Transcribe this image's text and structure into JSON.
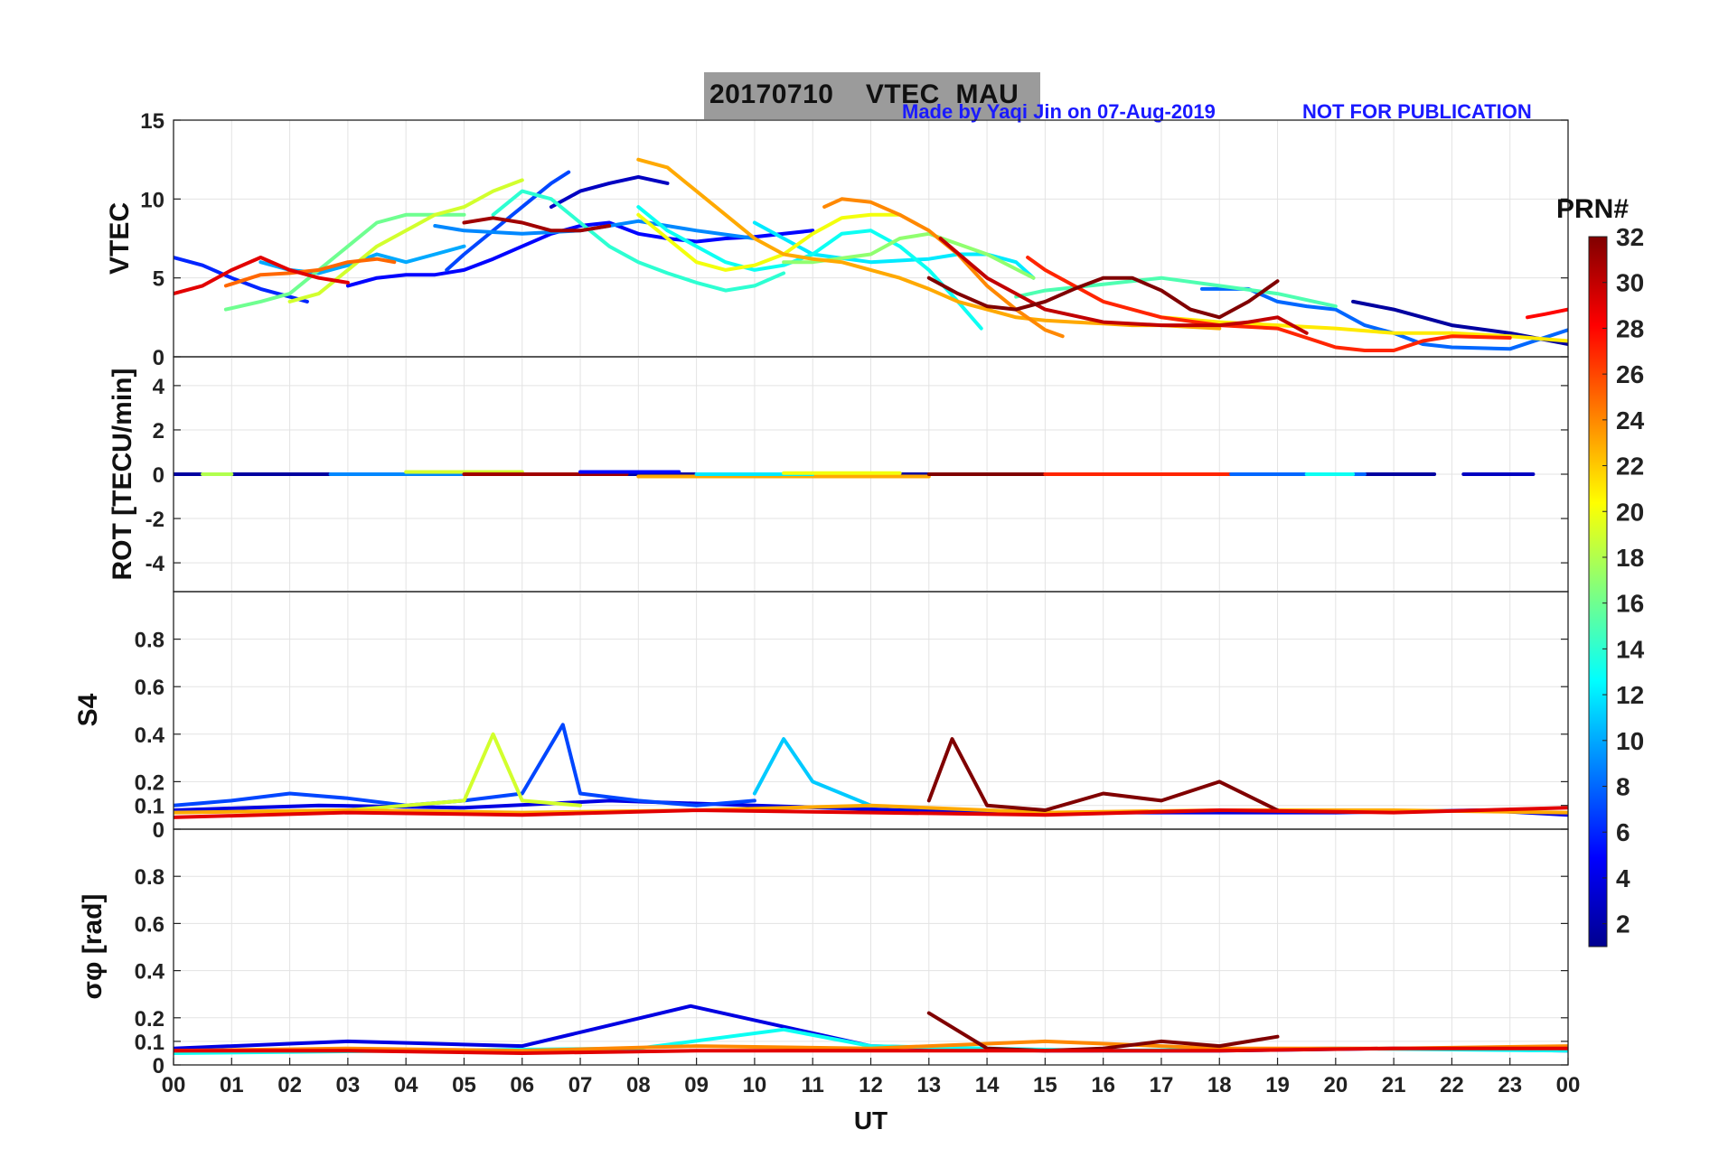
{
  "header": {
    "title_date": "20170710",
    "title_station": "VTEC  MAU",
    "credit": "Made by Yaqi Jin on 07-Aug-2019",
    "notice": "NOT FOR PUBLICATION"
  },
  "chart_data": [
    {
      "type": "line",
      "panel": "vtec",
      "ylabel": "VTEC",
      "ylim": [
        0,
        15
      ],
      "yticks": [
        "0",
        "5",
        "10",
        "15"
      ],
      "series": [
        {
          "prn": 2,
          "x": [
            20.3,
            21.0,
            22.0,
            23.0,
            24.0
          ],
          "y": [
            3.5,
            3.0,
            2.0,
            1.5,
            0.8
          ]
        },
        {
          "prn": 3,
          "x": [
            6.5,
            7.0,
            7.5,
            8.0,
            8.5
          ],
          "y": [
            9.5,
            10.5,
            11.0,
            11.4,
            11.0
          ]
        },
        {
          "prn": 5,
          "x": [
            3.0,
            3.5,
            4.0,
            4.5,
            5.0,
            5.5,
            6.0,
            6.5,
            7.0,
            7.5,
            8.0,
            8.5,
            9.0,
            9.5,
            10.0,
            10.5,
            11.0
          ],
          "y": [
            4.5,
            5.0,
            5.2,
            5.2,
            5.5,
            6.2,
            7.0,
            7.8,
            8.3,
            8.5,
            7.8,
            7.5,
            7.3,
            7.5,
            7.6,
            7.8,
            8.0
          ]
        },
        {
          "prn": 6,
          "x": [
            0.0,
            0.5,
            1.0,
            1.5,
            2.0,
            2.3
          ],
          "y": [
            6.3,
            5.8,
            5.0,
            4.3,
            3.8,
            3.5
          ]
        },
        {
          "prn": 7,
          "x": [
            4.7,
            5.0,
            5.5,
            6.0,
            6.5,
            6.8
          ],
          "y": [
            5.5,
            6.5,
            8.0,
            9.5,
            11.0,
            11.7
          ]
        },
        {
          "prn": 8,
          "x": [
            17.7,
            18.5,
            19.0,
            19.5,
            20.0,
            20.5,
            21.0,
            21.5,
            22.0,
            23.0,
            24.0
          ],
          "y": [
            4.3,
            4.3,
            3.5,
            3.2,
            3.0,
            2.0,
            1.5,
            0.8,
            0.6,
            0.5,
            1.7
          ]
        },
        {
          "prn": 9,
          "x": [
            4.5,
            5.0,
            6.0,
            7.0,
            8.0,
            9.0,
            10.0
          ],
          "y": [
            8.3,
            8.0,
            7.8,
            8.0,
            8.6,
            8.0,
            7.5
          ]
        },
        {
          "prn": 10,
          "x": [
            1.5,
            2.0,
            2.5,
            3.0,
            3.5,
            4.0,
            4.5,
            5.0
          ],
          "y": [
            6.0,
            5.5,
            5.3,
            5.8,
            6.5,
            6.0,
            6.5,
            7.0
          ]
        },
        {
          "prn": 12,
          "x": [
            10.0,
            10.5,
            11.0,
            12.0,
            13.0,
            13.5,
            14.0,
            14.5,
            14.8
          ],
          "y": [
            8.5,
            7.5,
            6.5,
            6.0,
            6.2,
            6.5,
            6.5,
            6.0,
            5.0
          ]
        },
        {
          "prn": 13,
          "x": [
            8.0,
            8.5,
            9.0,
            9.5,
            10.0,
            10.5,
            11.0,
            11.5,
            12.0,
            12.5,
            13.0,
            13.5,
            13.9
          ],
          "y": [
            9.5,
            8.0,
            7.0,
            6.0,
            5.5,
            5.8,
            6.5,
            7.8,
            8.0,
            7.0,
            5.5,
            3.5,
            1.8
          ]
        },
        {
          "prn": 14,
          "x": [
            5.5,
            6.0,
            6.5,
            7.0,
            7.5,
            8.0,
            8.5,
            9.0,
            9.5,
            10.0,
            10.5
          ],
          "y": [
            9.0,
            10.5,
            10.0,
            8.5,
            7.0,
            6.0,
            5.3,
            4.7,
            4.2,
            4.5,
            5.3
          ]
        },
        {
          "prn": 15,
          "x": [
            14.5,
            15.0,
            16.0,
            17.0,
            18.0,
            19.0,
            20.0
          ],
          "y": [
            3.8,
            4.2,
            4.6,
            5.0,
            4.5,
            4.0,
            3.2
          ]
        },
        {
          "prn": 16,
          "x": [
            0.9,
            1.5,
            2.0,
            2.5,
            3.0,
            3.5,
            4.0,
            4.5,
            5.0
          ],
          "y": [
            3.0,
            3.5,
            4.0,
            5.5,
            7.0,
            8.5,
            9.0,
            9.0,
            9.0
          ]
        },
        {
          "prn": 17,
          "x": [
            10.5,
            11.0,
            12.0,
            12.5,
            13.0,
            14.0,
            14.8
          ],
          "y": [
            6.0,
            6.0,
            6.5,
            7.5,
            7.8,
            6.5,
            5.0
          ]
        },
        {
          "prn": 19,
          "x": [
            2.0,
            2.5,
            3.0,
            3.5,
            4.0,
            4.5,
            5.0,
            5.5,
            6.0
          ],
          "y": [
            3.5,
            4.0,
            5.5,
            7.0,
            8.0,
            9.0,
            9.5,
            10.5,
            11.2
          ]
        },
        {
          "prn": 20,
          "x": [
            8.0,
            8.5,
            9.0,
            9.5,
            10.0,
            10.5,
            11.0,
            11.5,
            12.0,
            12.5
          ],
          "y": [
            9.0,
            7.5,
            6.0,
            5.5,
            5.8,
            6.5,
            7.8,
            8.8,
            9.0,
            9.0
          ]
        },
        {
          "prn": 21,
          "x": [
            17.0,
            18.0,
            19.0,
            20.0,
            21.0,
            22.0,
            23.0,
            24.0
          ],
          "y": [
            2.5,
            2.2,
            2.0,
            1.8,
            1.5,
            1.5,
            1.3,
            1.0
          ]
        },
        {
          "prn": 23,
          "x": [
            8.0,
            8.5,
            9.0,
            9.5,
            10.0,
            10.5,
            11.0,
            11.5,
            12.0,
            12.5,
            13.0,
            13.5,
            14.0,
            14.5,
            15.0,
            15.5,
            16.0,
            16.5,
            17.0,
            18.0
          ],
          "y": [
            12.5,
            12.0,
            10.5,
            9.0,
            7.5,
            6.5,
            6.2,
            6.0,
            5.5,
            5.0,
            4.3,
            3.5,
            3.0,
            2.5,
            2.3,
            2.2,
            2.1,
            2.0,
            2.0,
            1.8
          ]
        },
        {
          "prn": 24,
          "x": [
            11.2,
            11.5,
            12.0,
            12.5,
            13.0,
            13.5,
            14.0,
            14.5,
            15.0,
            15.3
          ],
          "y": [
            9.5,
            10.0,
            9.8,
            9.0,
            8.0,
            6.5,
            4.5,
            3.0,
            1.7,
            1.3
          ]
        },
        {
          "prn": 25,
          "x": [
            0.9,
            1.5,
            2.0,
            2.5,
            3.0,
            3.5,
            3.8
          ],
          "y": [
            4.5,
            5.2,
            5.3,
            5.5,
            6.0,
            6.2,
            6.0
          ]
        },
        {
          "prn": 27,
          "x": [
            14.7,
            15.0,
            16.0,
            17.0,
            18.0,
            19.0,
            19.5,
            20.0,
            20.5,
            21.0,
            21.5,
            22.0,
            23.0
          ],
          "y": [
            6.3,
            5.5,
            3.5,
            2.5,
            2.0,
            1.8,
            1.2,
            0.6,
            0.4,
            0.4,
            1.0,
            1.3,
            1.2
          ]
        },
        {
          "prn": 28,
          "x": [
            23.3,
            23.6,
            24.0
          ],
          "y": [
            2.5,
            2.7,
            3.0
          ]
        },
        {
          "prn": 29,
          "x": [
            0.0,
            0.5,
            1.0,
            1.5,
            2.0,
            2.5,
            3.0
          ],
          "y": [
            4.0,
            4.5,
            5.5,
            6.3,
            5.5,
            5.0,
            4.7
          ]
        },
        {
          "prn": 30,
          "x": [
            13.2,
            14.0,
            15.0,
            16.0,
            17.0,
            18.0,
            18.5,
            19.0,
            19.5
          ],
          "y": [
            7.5,
            5.0,
            3.0,
            2.2,
            2.0,
            2.0,
            2.2,
            2.5,
            1.5
          ]
        },
        {
          "prn": 31,
          "x": [
            5.0,
            5.5,
            6.0,
            6.5,
            7.0,
            7.5
          ],
          "y": [
            8.5,
            8.8,
            8.5,
            8.0,
            8.0,
            8.3
          ]
        },
        {
          "prn": 32,
          "x": [
            13.0,
            13.5,
            14.0,
            14.5,
            15.0,
            15.5,
            16.0,
            16.5,
            17.0,
            17.5,
            18.0,
            18.5,
            19.0
          ],
          "y": [
            5.0,
            4.0,
            3.2,
            3.0,
            3.5,
            4.3,
            5.0,
            5.0,
            4.2,
            3.0,
            2.5,
            3.5,
            4.8
          ]
        }
      ]
    },
    {
      "type": "line",
      "panel": "rot",
      "ylabel": "ROT [TECU/min]",
      "ylim": [
        -5.3,
        5.3
      ],
      "yticks": [
        "-4",
        "-2",
        "0",
        "2",
        "4"
      ],
      "series": [
        {
          "prn": 2,
          "x": [
            0.0,
            21.7
          ],
          "y": [
            0,
            0
          ]
        },
        {
          "prn": 3,
          "x": [
            22.2,
            23.4
          ],
          "y": [
            0,
            0
          ]
        },
        {
          "prn": 9,
          "x": [
            2.7,
            5.0
          ],
          "y": [
            0,
            0
          ]
        },
        {
          "prn": 18,
          "x": [
            0.5,
            1.0
          ],
          "y": [
            0,
            0
          ]
        },
        {
          "prn": 19,
          "x": [
            4.0,
            6.0
          ],
          "y": [
            0.1,
            0.1
          ]
        },
        {
          "prn": 31,
          "x": [
            5.0,
            7.8
          ],
          "y": [
            0,
            0
          ]
        },
        {
          "prn": 5,
          "x": [
            7.0,
            8.7
          ],
          "y": [
            0.1,
            0.1
          ]
        },
        {
          "prn": 23,
          "x": [
            8.0,
            13.0
          ],
          "y": [
            -0.1,
            -0.1
          ]
        },
        {
          "prn": 12,
          "x": [
            9.0,
            11.0
          ],
          "y": [
            0,
            0
          ]
        },
        {
          "prn": 20,
          "x": [
            10.5,
            12.5
          ],
          "y": [
            0.05,
            0.05
          ]
        },
        {
          "prn": 32,
          "x": [
            13.0,
            17.0
          ],
          "y": [
            0,
            0
          ]
        },
        {
          "prn": 27,
          "x": [
            15.0,
            18.2
          ],
          "y": [
            0,
            0
          ]
        },
        {
          "prn": 8,
          "x": [
            18.2,
            20.5
          ],
          "y": [
            0,
            0
          ]
        },
        {
          "prn": 13,
          "x": [
            19.5,
            20.3
          ],
          "y": [
            0,
            0
          ]
        }
      ]
    },
    {
      "type": "line",
      "panel": "s4",
      "ylabel": "S4",
      "ylim": [
        0,
        1.0
      ],
      "yticks": [
        "0",
        "0.1",
        "0.2",
        "0.4",
        "0.6",
        "0.8"
      ],
      "series": [
        {
          "prn": 4,
          "x": [
            0.0,
            2.5,
            5.0,
            7.5,
            10.0,
            12.5,
            15.0,
            17.5,
            20.0,
            22.5,
            24.0
          ],
          "y": [
            0.08,
            0.1,
            0.09,
            0.12,
            0.1,
            0.08,
            0.07,
            0.07,
            0.07,
            0.08,
            0.06
          ]
        },
        {
          "prn": 7,
          "x": [
            0.0,
            1.0,
            2.0,
            3.0,
            4.0,
            5.0,
            6.0,
            6.7,
            7.0,
            8.0,
            9.0,
            10.0
          ],
          "y": [
            0.1,
            0.12,
            0.15,
            0.13,
            0.1,
            0.12,
            0.15,
            0.44,
            0.15,
            0.12,
            0.1,
            0.12
          ]
        },
        {
          "prn": 11,
          "x": [
            10.0,
            10.5,
            11.0,
            12.0
          ],
          "y": [
            0.15,
            0.38,
            0.2,
            0.1
          ]
        },
        {
          "prn": 19,
          "x": [
            3.0,
            4.0,
            5.0,
            5.5,
            6.0,
            7.0
          ],
          "y": [
            0.08,
            0.1,
            0.12,
            0.4,
            0.12,
            0.1
          ]
        },
        {
          "prn": 23,
          "x": [
            0.0,
            3.0,
            6.0,
            9.0,
            12.0,
            15.0,
            18.0,
            21.0,
            24.0
          ],
          "y": [
            0.07,
            0.08,
            0.07,
            0.08,
            0.1,
            0.07,
            0.08,
            0.08,
            0.07
          ]
        },
        {
          "prn": 32,
          "x": [
            13.0,
            13.4,
            14.0,
            15.0,
            16.0,
            17.0,
            18.0,
            19.0
          ],
          "y": [
            0.12,
            0.38,
            0.1,
            0.08,
            0.15,
            0.12,
            0.2,
            0.08
          ]
        },
        {
          "prn": 29,
          "x": [
            0.0,
            3.0,
            6.0,
            9.0,
            12.0,
            15.0,
            18.0,
            21.0,
            24.0
          ],
          "y": [
            0.05,
            0.07,
            0.06,
            0.08,
            0.07,
            0.06,
            0.08,
            0.07,
            0.09
          ]
        }
      ]
    },
    {
      "type": "line",
      "panel": "sigma",
      "ylabel": "σφ [rad]",
      "ylim": [
        0,
        1.0
      ],
      "yticks": [
        "0",
        "0.1",
        "0.2",
        "0.4",
        "0.6",
        "0.8"
      ],
      "series": [
        {
          "prn": 4,
          "x": [
            0.0,
            3.0,
            6.0,
            8.9,
            12.0,
            15.0,
            18.0,
            21.0,
            24.0
          ],
          "y": [
            0.07,
            0.1,
            0.08,
            0.25,
            0.08,
            0.06,
            0.06,
            0.07,
            0.06
          ]
        },
        {
          "prn": 13,
          "x": [
            0.0,
            4.0,
            8.0,
            10.5,
            12.0,
            16.0,
            20.0,
            24.0
          ],
          "y": [
            0.05,
            0.06,
            0.07,
            0.15,
            0.08,
            0.06,
            0.07,
            0.06
          ]
        },
        {
          "prn": 24,
          "x": [
            0.0,
            3.0,
            6.0,
            9.0,
            12.0,
            15.0,
            18.0,
            21.0,
            24.0
          ],
          "y": [
            0.06,
            0.07,
            0.06,
            0.08,
            0.07,
            0.1,
            0.07,
            0.07,
            0.08
          ]
        },
        {
          "prn": 32,
          "x": [
            13.0,
            14.0,
            15.0,
            16.0,
            17.0,
            18.0,
            19.0
          ],
          "y": [
            0.22,
            0.07,
            0.06,
            0.07,
            0.1,
            0.08,
            0.12
          ]
        },
        {
          "prn": 29,
          "x": [
            0.0,
            3.0,
            6.0,
            9.0,
            12.0,
            15.0,
            18.0,
            21.0,
            24.0
          ],
          "y": [
            0.06,
            0.06,
            0.05,
            0.06,
            0.06,
            0.06,
            0.06,
            0.07,
            0.07
          ]
        }
      ]
    }
  ],
  "xaxis": {
    "xlabel": "UT",
    "xlim": [
      0,
      24
    ],
    "ticks": [
      "00",
      "01",
      "02",
      "03",
      "04",
      "05",
      "06",
      "07",
      "08",
      "09",
      "10",
      "11",
      "12",
      "13",
      "14",
      "15",
      "16",
      "17",
      "18",
      "19",
      "20",
      "21",
      "22",
      "23",
      "00"
    ]
  },
  "colorbar": {
    "label": "PRN#",
    "range": [
      1,
      32
    ],
    "ticks": [
      "2",
      "4",
      "6",
      "8",
      "10",
      "12",
      "14",
      "16",
      "18",
      "20",
      "22",
      "24",
      "26",
      "28",
      "30",
      "32"
    ],
    "colormap": "jet"
  }
}
